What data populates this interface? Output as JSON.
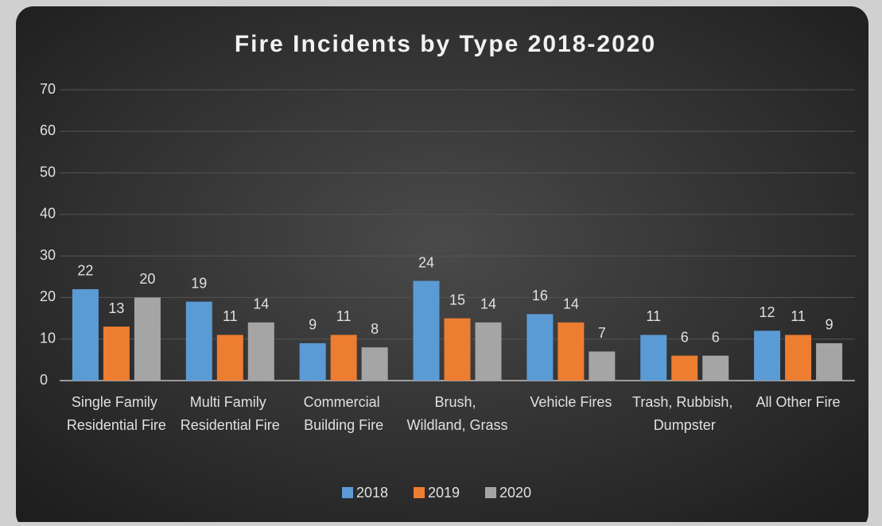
{
  "chart_data": {
    "type": "bar",
    "title": "Fire Incidents by Type 2018-2020",
    "categories": [
      "Single Family Residential Fire",
      "Multi Family Residential Fire",
      "Commercial Building Fire",
      "Brush, Wildland, Grass",
      "Vehicle Fires",
      "Trash, Rubbish, Dumpster",
      "All Other Fire"
    ],
    "series": [
      {
        "name": "2018",
        "color": "#5b9bd5",
        "values": [
          22,
          19,
          9,
          24,
          16,
          11,
          12
        ]
      },
      {
        "name": "2019",
        "color": "#ed7d31",
        "values": [
          13,
          11,
          11,
          15,
          14,
          6,
          11
        ]
      },
      {
        "name": "2020",
        "color": "#a5a5a5",
        "values": [
          20,
          14,
          8,
          14,
          7,
          6,
          9
        ]
      }
    ],
    "ylim": [
      0,
      70
    ],
    "yticks": [
      0,
      10,
      20,
      30,
      40,
      50,
      60,
      70
    ],
    "grid": true,
    "legend": "bottom"
  }
}
